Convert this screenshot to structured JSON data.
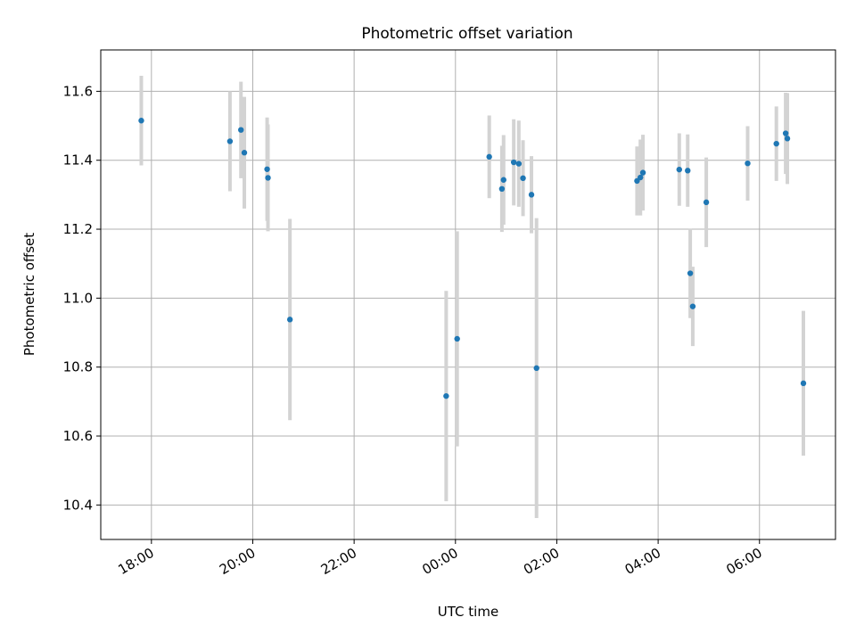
{
  "chart_data": {
    "type": "scatter",
    "title": "Photometric offset variation",
    "xlabel": "UTC time",
    "ylabel": "Photometric offset",
    "x_axis": {
      "kind": "time",
      "start": "17:00",
      "end": "07:30",
      "crosses_midnight": true,
      "ticks": [
        "18:00",
        "20:00",
        "22:00",
        "00:00",
        "02:00",
        "04:00",
        "06:00"
      ]
    },
    "ylim": [
      10.3,
      11.72
    ],
    "y_ticks": [
      "10.4",
      "10.6",
      "10.8",
      "11.0",
      "11.2",
      "11.4",
      "11.6"
    ],
    "grid": true,
    "colors": {
      "point": "#1f77b4",
      "errorbar": "#d3d3d3",
      "grid": "#b0b0b0"
    },
    "series": [
      {
        "points": [
          {
            "x": "17:48",
            "y": 11.515,
            "err": 0.13
          },
          {
            "x": "19:33",
            "y": 11.455,
            "err": 0.145
          },
          {
            "x": "19:46",
            "y": 11.488,
            "err": 0.14
          },
          {
            "x": "19:50",
            "y": 11.422,
            "err": 0.162
          },
          {
            "x": "20:17",
            "y": 11.374,
            "err": 0.15
          },
          {
            "x": "20:18",
            "y": 11.349,
            "err": 0.155
          },
          {
            "x": "20:44",
            "y": 10.938,
            "err": 0.292
          },
          {
            "x": "23:49",
            "y": 10.716,
            "err": 0.305
          },
          {
            "x": "00:02",
            "y": 10.882,
            "err": 0.312
          },
          {
            "x": "00:40",
            "y": 11.41,
            "err": 0.12
          },
          {
            "x": "00:55",
            "y": 11.317,
            "err": 0.125
          },
          {
            "x": "00:57",
            "y": 11.343,
            "err": 0.13
          },
          {
            "x": "01:09",
            "y": 11.394,
            "err": 0.125
          },
          {
            "x": "01:15",
            "y": 11.39,
            "err": 0.125
          },
          {
            "x": "01:20",
            "y": 11.348,
            "err": 0.11
          },
          {
            "x": "01:30",
            "y": 11.3,
            "err": 0.112
          },
          {
            "x": "01:36",
            "y": 10.797,
            "err": 0.435
          },
          {
            "x": "03:35",
            "y": 11.34,
            "err": 0.1
          },
          {
            "x": "03:39",
            "y": 11.35,
            "err": 0.11
          },
          {
            "x": "03:42",
            "y": 11.364,
            "err": 0.11
          },
          {
            "x": "04:25",
            "y": 11.373,
            "err": 0.105
          },
          {
            "x": "04:35",
            "y": 11.37,
            "err": 0.105
          },
          {
            "x": "04:38",
            "y": 11.072,
            "err": 0.13
          },
          {
            "x": "04:41",
            "y": 10.976,
            "err": 0.115
          },
          {
            "x": "04:57",
            "y": 11.278,
            "err": 0.13
          },
          {
            "x": "05:46",
            "y": 11.391,
            "err": 0.108
          },
          {
            "x": "06:20",
            "y": 11.448,
            "err": 0.108
          },
          {
            "x": "06:31",
            "y": 11.478,
            "err": 0.118
          },
          {
            "x": "06:33",
            "y": 11.463,
            "err": 0.132
          },
          {
            "x": "06:52",
            "y": 10.753,
            "err": 0.21
          }
        ]
      }
    ]
  }
}
